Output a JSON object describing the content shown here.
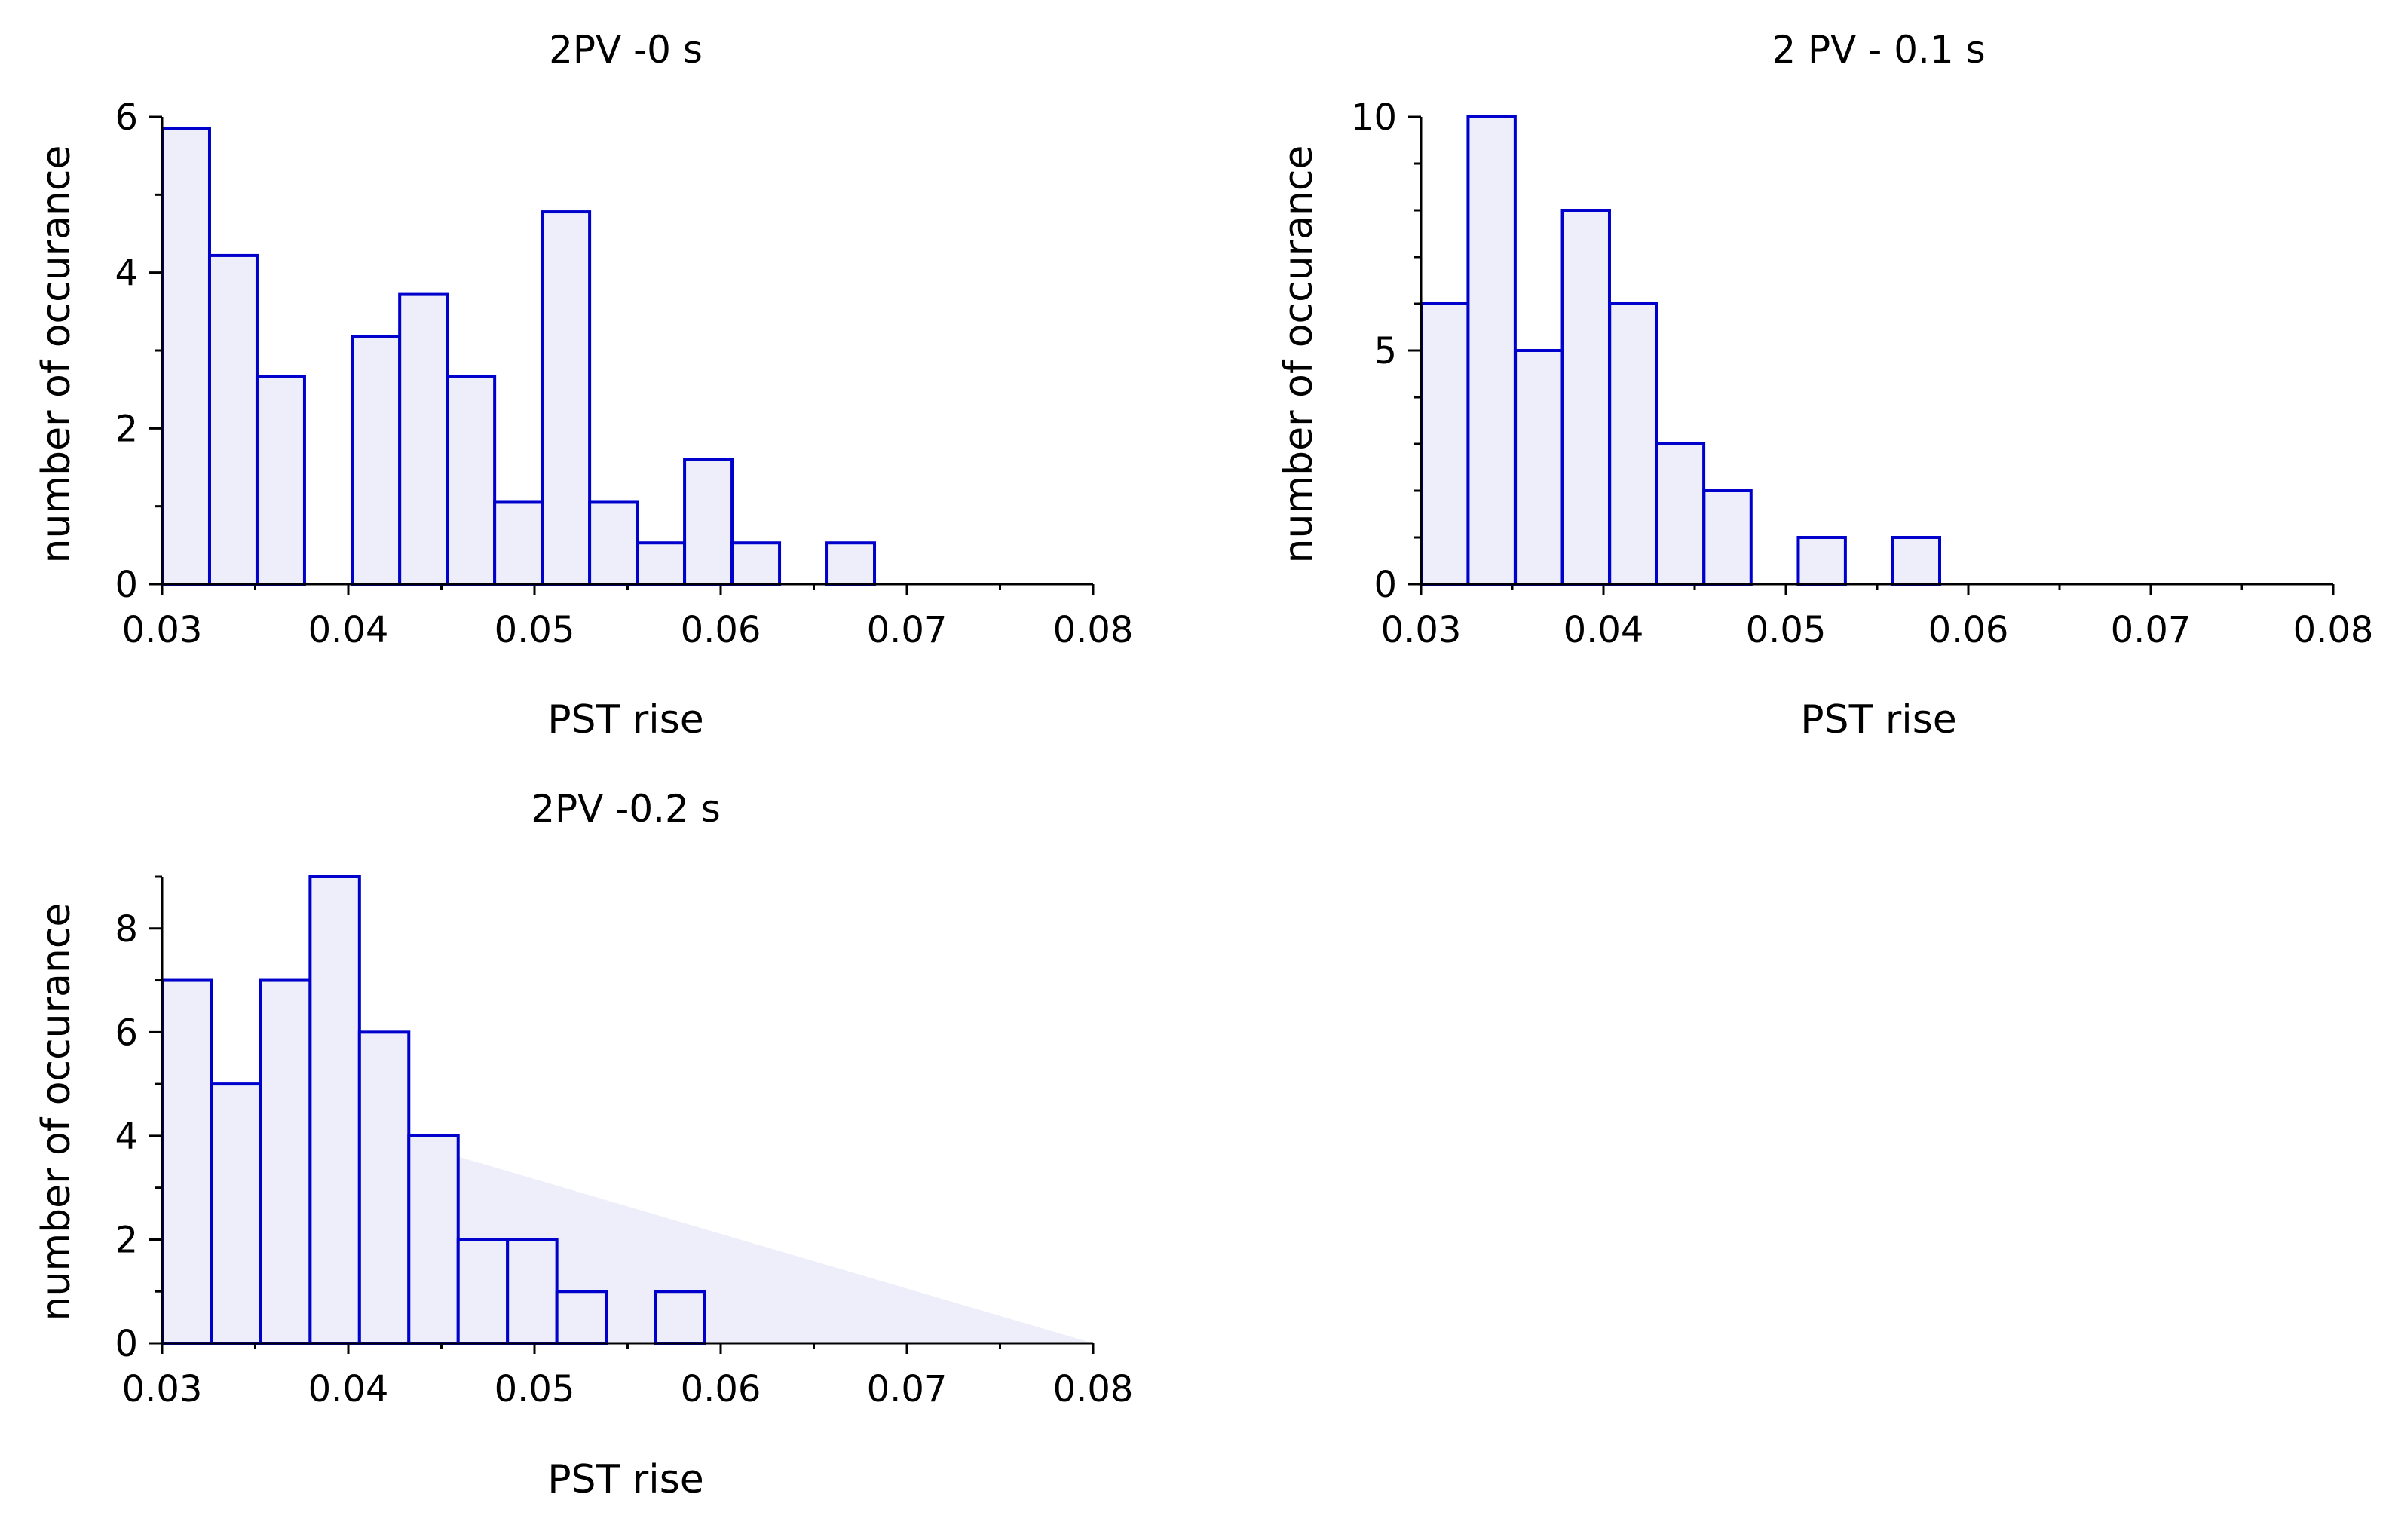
{
  "colors": {
    "bar_fill": "#eeeefb",
    "bar_stroke": "#0000cc",
    "axis": "#000000",
    "background": "#ffffff"
  },
  "chart_data": [
    {
      "type": "bar",
      "title": "2PV -0 s",
      "xlabel": "PST rise",
      "ylabel": "number of occurance",
      "xlim": [
        0.03,
        0.08
      ],
      "ylim": [
        0,
        6
      ],
      "xticks": [
        0.03,
        0.04,
        0.05,
        0.06,
        0.07,
        0.08
      ],
      "xtick_labels": [
        "0.03",
        "0.04",
        "0.05",
        "0.06",
        "0.07",
        "0.08"
      ],
      "yticks": [
        0,
        2,
        4,
        6
      ],
      "ytick_labels": [
        "0",
        "2",
        "4",
        "6"
      ],
      "y_minor_step": 1,
      "bin_width": 0.00255,
      "bin_starts": [
        0.03,
        0.03255,
        0.0351,
        0.04021,
        0.04276,
        0.04531,
        0.04786,
        0.05041,
        0.05296,
        0.05551,
        0.05806,
        0.06061,
        0.06571
      ],
      "values": [
        5.85,
        4.22,
        2.67,
        3.18,
        3.72,
        2.67,
        1.06,
        4.78,
        1.06,
        0.53,
        1.6,
        0.53,
        0.53
      ]
    },
    {
      "type": "bar",
      "title": "2 PV - 0.1 s",
      "xlabel": "PST rise",
      "ylabel": "number of occurance",
      "xlim": [
        0.03,
        0.08
      ],
      "ylim": [
        0,
        10
      ],
      "xticks": [
        0.03,
        0.04,
        0.05,
        0.06,
        0.07,
        0.08
      ],
      "xtick_labels": [
        "0.03",
        "0.04",
        "0.05",
        "0.06",
        "0.07",
        "0.08"
      ],
      "yticks": [
        0,
        5,
        10
      ],
      "ytick_labels": [
        "0",
        "5",
        "10"
      ],
      "y_minor_step": 1,
      "bin_width": 0.00258,
      "bin_starts": [
        0.03,
        0.03258,
        0.03517,
        0.03775,
        0.04034,
        0.04292,
        0.04551,
        0.05068,
        0.05585
      ],
      "values": [
        6,
        10,
        5,
        8,
        6,
        3,
        2,
        1,
        1
      ]
    },
    {
      "type": "bar",
      "title": "2PV -0.2 s",
      "xlabel": "PST rise",
      "ylabel": "number of occurance",
      "xlim": [
        0.03,
        0.08
      ],
      "ylim": [
        0,
        9
      ],
      "xticks": [
        0.03,
        0.04,
        0.05,
        0.06,
        0.07,
        0.08
      ],
      "xtick_labels": [
        "0.03",
        "0.04",
        "0.05",
        "0.06",
        "0.07",
        "0.08"
      ],
      "yticks": [
        0,
        2,
        4,
        6,
        8
      ],
      "ytick_labels": [
        "0",
        "2",
        "4",
        "6",
        "8"
      ],
      "y_minor_step": 1,
      "bin_width": 0.00265,
      "bin_starts": [
        0.03,
        0.03265,
        0.0353,
        0.03795,
        0.0406,
        0.04325,
        0.0459,
        0.04855,
        0.0512,
        0.0565
      ],
      "values": [
        7,
        5,
        7,
        9,
        6,
        4,
        2,
        2,
        1,
        1
      ],
      "shaded_wedge": {
        "x": [
          0.0459,
          0.08
        ],
        "y_start": 3.6,
        "y_end": 0
      }
    }
  ]
}
